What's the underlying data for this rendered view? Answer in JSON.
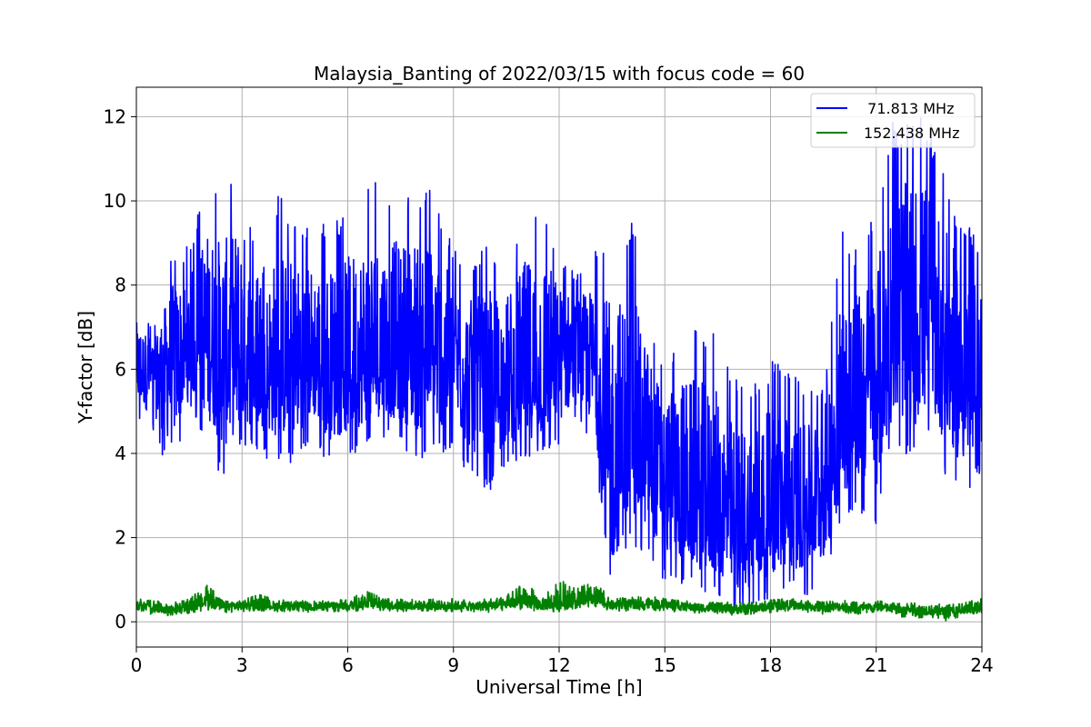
{
  "chart_data": {
    "type": "line",
    "title": "Malaysia_Banting of 2022/03/15 with focus code = 60",
    "xlabel": "Universal Time [h]",
    "ylabel": "Y-factor [dB]",
    "xlim": [
      0,
      24
    ],
    "ylim": [
      -0.6,
      12.7
    ],
    "xticks": [
      0,
      3,
      6,
      9,
      12,
      15,
      18,
      21,
      24
    ],
    "xtick_labels": [
      "0",
      "3",
      "6",
      "9",
      "12",
      "15",
      "18",
      "21",
      "24"
    ],
    "yticks": [
      0,
      2,
      4,
      6,
      8,
      10,
      12
    ],
    "ytick_labels": [
      "0",
      "2",
      "4",
      "6",
      "8",
      "10",
      "12"
    ],
    "grid": true,
    "legend_position": "top-right",
    "series": [
      {
        "name": "  71.813 MHz",
        "color": "#0000ff",
        "x": [
          0,
          0.5,
          1,
          1.5,
          2,
          2.5,
          3,
          3.5,
          4,
          4.5,
          5,
          5.5,
          6,
          6.5,
          7,
          7.5,
          8,
          8.5,
          9,
          9.5,
          10,
          10.5,
          11,
          11.5,
          12,
          12.5,
          13,
          13.5,
          14,
          14.5,
          15,
          15.5,
          16,
          16.5,
          17,
          17.5,
          18,
          18.5,
          19,
          19.5,
          20,
          20.5,
          21,
          21.5,
          22,
          22.5,
          23,
          23.5,
          24
        ],
        "y": [
          6.0,
          5.9,
          6.1,
          6.3,
          6.5,
          6.2,
          6.0,
          6.0,
          5.9,
          5.9,
          6.0,
          6.0,
          6.0,
          6.0,
          6.1,
          6.1,
          6.2,
          6.2,
          6.0,
          5.7,
          5.2,
          5.3,
          5.6,
          5.6,
          6.1,
          6.3,
          6.0,
          3.2,
          4.0,
          3.8,
          3.4,
          2.8,
          2.5,
          2.4,
          2.1,
          2.2,
          2.3,
          2.4,
          2.6,
          3.1,
          4.5,
          5.3,
          5.3,
          6.5,
          6.9,
          7.0,
          6.3,
          5.6,
          5.2
        ],
        "y_low": [
          4.8,
          4.5,
          3.3,
          5.2,
          4.2,
          3.2,
          4.2,
          4.0,
          3.7,
          3.8,
          4.4,
          3.6,
          3.8,
          4.2,
          4.4,
          4.2,
          3.8,
          4.0,
          4.0,
          3.4,
          3.0,
          3.8,
          3.8,
          3.9,
          4.2,
          4.7,
          4.1,
          0.5,
          1.8,
          1.6,
          0.9,
          0.9,
          0.7,
          0.6,
          0.1,
          0.3,
          0.6,
          0.8,
          0.6,
          0.7,
          2.3,
          2.6,
          2.3,
          4.4,
          3.6,
          4.2,
          3.3,
          2.9,
          2.6
        ],
        "y_high": [
          7.6,
          7.0,
          8.8,
          9.0,
          10.5,
          10.3,
          11.1,
          7.9,
          10.2,
          9.7,
          9.6,
          9.4,
          9.8,
          10.5,
          10.4,
          10.3,
          10.5,
          10.2,
          8.9,
          8.5,
          9.0,
          8.8,
          9.8,
          10.4,
          8.8,
          8.3,
          8.8,
          9.4,
          9.8,
          7.8,
          6.0,
          7.1,
          7.1,
          6.8,
          5.8,
          5.8,
          6.2,
          6.2,
          5.5,
          5.7,
          9.3,
          8.9,
          9.8,
          12.0,
          12.0,
          12.0,
          10.5,
          9.5,
          9.3
        ]
      },
      {
        "name": "152.438 MHz",
        "color": "#008000",
        "x": [
          0,
          0.5,
          1,
          1.5,
          2,
          2.5,
          3,
          3.5,
          4,
          4.5,
          5,
          5.5,
          6,
          6.5,
          7,
          7.5,
          8,
          8.5,
          9,
          9.5,
          10,
          10.5,
          11,
          11.5,
          12,
          12.5,
          13,
          13.5,
          14,
          14.5,
          15,
          15.5,
          16,
          16.5,
          17,
          17.5,
          18,
          18.5,
          19,
          19.5,
          20,
          20.5,
          21,
          21.5,
          22,
          22.5,
          23,
          23.5,
          24
        ],
        "y": [
          0.38,
          0.32,
          0.3,
          0.36,
          0.45,
          0.36,
          0.38,
          0.4,
          0.36,
          0.37,
          0.36,
          0.38,
          0.37,
          0.46,
          0.4,
          0.38,
          0.38,
          0.38,
          0.38,
          0.36,
          0.38,
          0.42,
          0.44,
          0.38,
          0.4,
          0.5,
          0.54,
          0.38,
          0.4,
          0.44,
          0.4,
          0.36,
          0.33,
          0.32,
          0.3,
          0.32,
          0.36,
          0.4,
          0.36,
          0.33,
          0.36,
          0.32,
          0.36,
          0.3,
          0.3,
          0.28,
          0.22,
          0.26,
          0.3
        ],
        "y_low": [
          0.22,
          0.15,
          0.15,
          0.2,
          0.28,
          0.22,
          0.24,
          0.26,
          0.24,
          0.24,
          0.22,
          0.24,
          0.23,
          0.28,
          0.26,
          0.24,
          0.25,
          0.25,
          0.24,
          0.22,
          0.22,
          0.26,
          0.28,
          0.24,
          0.24,
          0.32,
          0.36,
          0.24,
          0.26,
          0.28,
          0.26,
          0.22,
          0.2,
          0.18,
          0.14,
          0.18,
          0.22,
          0.26,
          0.22,
          0.18,
          0.22,
          0.18,
          0.22,
          0.15,
          0.05,
          0.12,
          0.02,
          0.12,
          0.18
        ],
        "y_high": [
          0.55,
          0.5,
          0.45,
          0.55,
          0.88,
          0.55,
          0.55,
          0.65,
          0.52,
          0.52,
          0.5,
          0.53,
          0.52,
          0.75,
          0.56,
          0.54,
          0.55,
          0.55,
          0.55,
          0.52,
          0.55,
          0.62,
          0.95,
          0.6,
          1.0,
          0.8,
          1.02,
          0.55,
          0.58,
          0.62,
          0.56,
          0.5,
          0.48,
          0.46,
          0.48,
          0.46,
          0.52,
          0.56,
          0.52,
          0.48,
          0.52,
          0.46,
          0.52,
          0.45,
          0.45,
          0.45,
          0.4,
          0.45,
          0.58
        ]
      }
    ]
  }
}
